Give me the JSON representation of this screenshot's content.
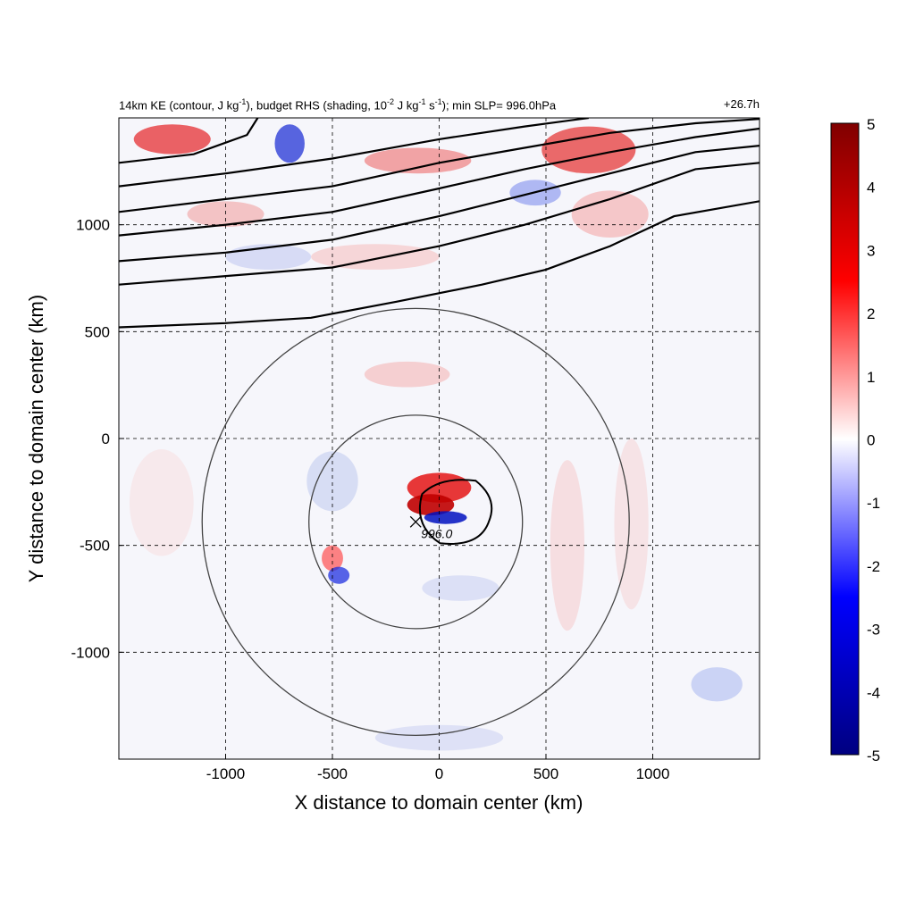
{
  "chart_data": {
    "type": "heatmap",
    "title_left": {
      "parts": [
        {
          "text": "14km KE (contour, J kg"
        },
        {
          "text": "-1",
          "sup": true
        },
        {
          "text": "), budget RHS (shading, 10"
        },
        {
          "text": "-2",
          "sup": true
        },
        {
          "text": " J kg"
        },
        {
          "text": "-1",
          "sup": true
        },
        {
          "text": " s"
        },
        {
          "text": "-1",
          "sup": true
        },
        {
          "text": "); min SLP= 996.0hPa"
        }
      ]
    },
    "title_right": "+26.7h",
    "xlabel": "X distance to domain center (km)",
    "ylabel": "Y distance to domain center (km)",
    "xlim": [
      -1500,
      1500
    ],
    "ylim": [
      -1500,
      1500
    ],
    "xticks": [
      -1000,
      -500,
      0,
      500,
      1000
    ],
    "yticks": [
      -1000,
      -500,
      0,
      500,
      1000
    ],
    "grid": "dashed",
    "colorbar": {
      "range": [
        -5,
        5
      ],
      "ticks": [
        5,
        4,
        3,
        2,
        1,
        0,
        -1,
        -2,
        -3,
        -4,
        -5
      ],
      "colors": [
        "#000080",
        "#0000ff",
        "#ffffff",
        "#ff0000",
        "#800000"
      ]
    },
    "min_slp_marker": {
      "x": -110,
      "y": -390,
      "label": "996.0"
    },
    "range_rings_km": [
      500,
      1000
    ],
    "ring_center": {
      "x": -110,
      "y": -390
    },
    "ke_contours": [
      [
        [
          -1500,
          520
        ],
        [
          -1000,
          540
        ],
        [
          -600,
          565
        ],
        [
          -200,
          640
        ],
        [
          200,
          720
        ],
        [
          500,
          790
        ],
        [
          800,
          900
        ],
        [
          1100,
          1040
        ],
        [
          1500,
          1110
        ]
      ],
      [
        [
          -1500,
          720
        ],
        [
          -1000,
          760
        ],
        [
          -500,
          800
        ],
        [
          0,
          900
        ],
        [
          400,
          1000
        ],
        [
          800,
          1120
        ],
        [
          1200,
          1260
        ],
        [
          1500,
          1290
        ]
      ],
      [
        [
          -1500,
          830
        ],
        [
          -1000,
          870
        ],
        [
          -500,
          930
        ],
        [
          0,
          1040
        ],
        [
          400,
          1140
        ],
        [
          800,
          1240
        ],
        [
          1200,
          1340
        ],
        [
          1500,
          1370
        ]
      ],
      [
        [
          -1500,
          950
        ],
        [
          -1000,
          1000
        ],
        [
          -500,
          1060
        ],
        [
          0,
          1170
        ],
        [
          400,
          1260
        ],
        [
          800,
          1340
        ],
        [
          1200,
          1410
        ],
        [
          1500,
          1450
        ]
      ],
      [
        [
          -1500,
          1060
        ],
        [
          -1000,
          1120
        ],
        [
          -500,
          1180
        ],
        [
          0,
          1290
        ],
        [
          400,
          1360
        ],
        [
          800,
          1430
        ],
        [
          1200,
          1475
        ],
        [
          1500,
          1495
        ]
      ],
      [
        [
          -1500,
          1180
        ],
        [
          -1000,
          1240
        ],
        [
          -500,
          1310
        ],
        [
          0,
          1400
        ],
        [
          400,
          1460
        ],
        [
          700,
          1500
        ]
      ],
      [
        [
          -1500,
          1290
        ],
        [
          -1150,
          1330
        ],
        [
          -900,
          1420
        ],
        [
          -850,
          1500
        ]
      ]
    ]
  }
}
